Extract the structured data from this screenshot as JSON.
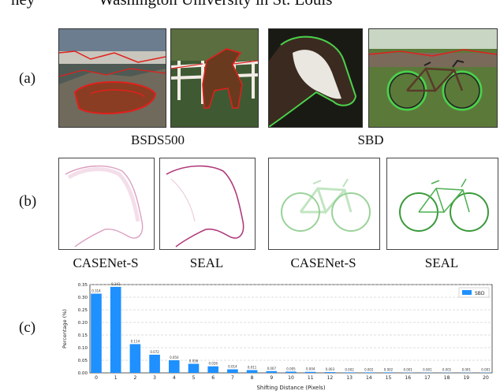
{
  "top_cut_text": {
    "left": "ney",
    "right": "Washington University in St. Louis"
  },
  "row_labels": {
    "a": "(a)",
    "b": "(b)",
    "c": "(c)"
  },
  "captions_a": {
    "bsds": "BSDS500",
    "sbd": "SBD"
  },
  "captions_b": [
    "CASENet-S",
    "SEAL",
    "CASENet-S",
    "SEAL"
  ],
  "colors": {
    "bar": "#1e90ff",
    "edge_magenta": "#c0508c",
    "edge_green": "#4caf50",
    "overlay_red": "#e0201c",
    "overlay_green": "#4bd14b"
  },
  "chart_data": {
    "type": "bar",
    "title": "",
    "xlabel": "Shifting Distance (Pixels)",
    "ylabel": "Percentage (%)",
    "ylim": [
      0,
      0.35
    ],
    "yticks": [
      "0.00",
      "0.05",
      "0.10",
      "0.15",
      "0.20",
      "0.25",
      "0.30",
      "0.35"
    ],
    "legend": {
      "position": "top-right",
      "entries": [
        "SBD"
      ]
    },
    "grid": "dashed-horizontal",
    "categories": [
      "0",
      "1",
      "2",
      "3",
      "4",
      "5",
      "6",
      "7",
      "8",
      "9",
      "10",
      "11",
      "12",
      "13",
      "14",
      "15",
      "16",
      "17",
      "18",
      "19",
      "20"
    ],
    "values": [
      0.314,
      0.341,
      0.114,
      0.072,
      0.05,
      0.036,
      0.026,
      0.014,
      0.011,
      0.007,
      0.005,
      0.004,
      0.003,
      0.002,
      0.002,
      0.002,
      0.001,
      0.001,
      0.001,
      0.001,
      0.001
    ],
    "value_labels": [
      "0.314",
      "0.341",
      "0.114",
      "0.072",
      "0.050",
      "0.036",
      "0.026",
      "0.014",
      "0.011",
      "0.007",
      "0.005",
      "0.004",
      "0.003",
      "0.002",
      "0.002",
      "0.002",
      "0.001",
      "0.001",
      "0.001",
      "0.001",
      "0.001"
    ]
  }
}
